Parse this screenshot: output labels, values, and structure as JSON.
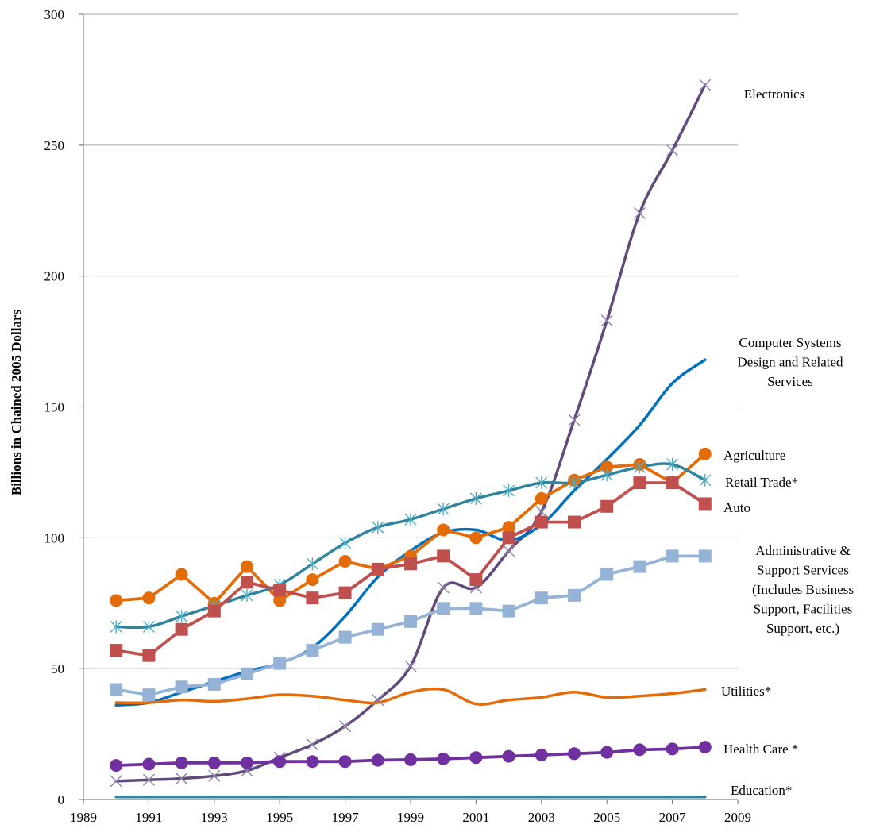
{
  "chart_data": {
    "type": "line",
    "title": "",
    "xlabel": "",
    "ylabel": "Billions in Chained 2005 Dollars",
    "xlim": [
      1989,
      2009
    ],
    "ylim": [
      0,
      300
    ],
    "x_ticks": [
      "1989",
      "1991",
      "1993",
      "1995",
      "1997",
      "1999",
      "2001",
      "2003",
      "2005",
      "2007",
      "2009"
    ],
    "y_ticks": [
      "0",
      "50",
      "100",
      "150",
      "200",
      "250",
      "300"
    ],
    "grid": "horizontal",
    "legend": "labels at right end of each series",
    "x": [
      1990,
      1991,
      1992,
      1993,
      1994,
      1995,
      1996,
      1997,
      1998,
      1999,
      2000,
      2001,
      2002,
      2003,
      2004,
      2005,
      2006,
      2007,
      2008
    ],
    "series": [
      {
        "name": "Electronics",
        "label_lines": [
          "Electronics"
        ],
        "color": "#604a7b",
        "marker": "x",
        "values": [
          7,
          7.5,
          8,
          9,
          11,
          16,
          21,
          28,
          38,
          51,
          81,
          81,
          95,
          110,
          145,
          183,
          224,
          248,
          273
        ]
      },
      {
        "name": "Computer Systems Design and Related Services",
        "label_lines": [
          "Computer Systems",
          "Design and Related",
          "Services"
        ],
        "color": "#0070c0",
        "marker": "none",
        "values": [
          36,
          37,
          41,
          45,
          49,
          52,
          58,
          70,
          85,
          95,
          102,
          103,
          99,
          105,
          118,
          130,
          143,
          159,
          168
        ]
      },
      {
        "name": "Agriculture",
        "label_lines": [
          "Agriculture"
        ],
        "color": "#e36c09",
        "marker": "circle",
        "values": [
          76,
          77,
          86,
          75,
          89,
          76,
          84,
          91,
          88,
          93,
          103,
          100,
          104,
          115,
          122,
          127,
          128,
          121,
          132
        ]
      },
      {
        "name": "Retail Trade*",
        "label_lines": [
          "Retail Trade*"
        ],
        "color": "#31849b",
        "marker": "asterisk",
        "values": [
          66,
          66,
          70,
          74,
          78,
          82,
          90,
          98,
          104,
          107,
          111,
          115,
          118,
          121,
          121,
          124,
          127,
          128,
          122
        ]
      },
      {
        "name": "Auto",
        "label_lines": [
          "Auto"
        ],
        "color": "#c0504d",
        "marker": "square",
        "values": [
          57,
          55,
          65,
          72,
          83,
          80,
          77,
          79,
          88,
          90,
          93,
          84,
          100,
          106,
          106,
          112,
          121,
          121,
          113
        ]
      },
      {
        "name": "Administrative & Support Services (Includes Business Support, Facilities Support, etc.)",
        "label_lines": [
          "Administrative &",
          "Support Services",
          "(Includes Business",
          "Support, Facilities",
          "Support, etc.)"
        ],
        "color": "#95b3d7",
        "marker": "square",
        "values": [
          42,
          40,
          43,
          44,
          48,
          52,
          57,
          62,
          65,
          68,
          73,
          73,
          72,
          77,
          78,
          86,
          89,
          93,
          93
        ]
      },
      {
        "name": "Utilities*",
        "label_lines": [
          "Utilities*"
        ],
        "color": "#e36c09",
        "marker": "none",
        "values": [
          37,
          37,
          38,
          37.5,
          38.5,
          40,
          39.5,
          38,
          37,
          41,
          42,
          36.5,
          38,
          39,
          41,
          39,
          39.5,
          40.5,
          42
        ]
      },
      {
        "name": "Health Care *",
        "label_lines": [
          "Health Care *"
        ],
        "color": "#7030a0",
        "marker": "circle",
        "values": [
          13,
          13.5,
          14,
          14,
          14,
          14.5,
          14.5,
          14.5,
          15,
          15.2,
          15.5,
          16,
          16.5,
          17,
          17.5,
          18,
          19,
          19.3,
          20
        ]
      },
      {
        "name": "Education*",
        "label_lines": [
          "Education*"
        ],
        "color": "#31849b",
        "marker": "none",
        "values": [
          1,
          1,
          1,
          1,
          1,
          1,
          1,
          1,
          1,
          1,
          1,
          1,
          1,
          1,
          1,
          1,
          1,
          1,
          1
        ]
      }
    ]
  }
}
